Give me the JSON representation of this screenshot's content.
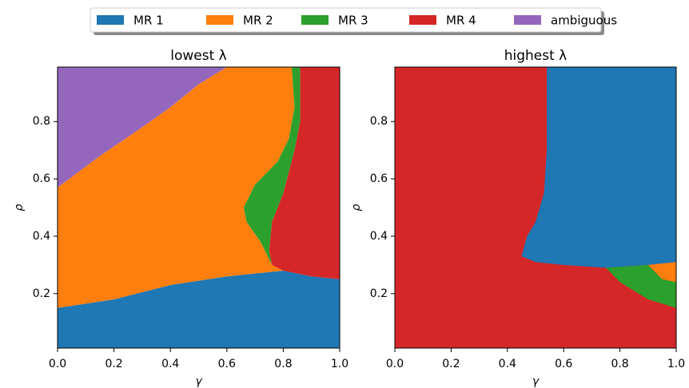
{
  "chart_data": [
    {
      "type": "region",
      "title": "lowest λ",
      "xlabel": "γ",
      "ylabel": "ρ",
      "xlim": [
        0,
        1
      ],
      "ylim": [
        0.01,
        0.99
      ],
      "xticks": [
        {
          "value": 0,
          "label": "0.0"
        },
        0.2,
        0.4,
        0.6,
        0.8,
        {
          "value": 1,
          "label": "1.0"
        }
      ],
      "yticks": [
        0.2,
        0.4,
        0.6,
        0.8
      ],
      "series": [
        {
          "name": "MR 1",
          "color": "#1f77b4",
          "x": [
            0,
            1,
            1,
            0.9,
            0.8,
            0.6,
            0.4,
            0.2,
            0.1,
            0
          ],
          "y": [
            0.01,
            0.01,
            0.25,
            0.26,
            0.28,
            0.26,
            0.23,
            0.18,
            0.165,
            0.15
          ]
        },
        {
          "name": "MR 2",
          "color": "#ff7f0e",
          "x": [
            0,
            0.1,
            0.2,
            0.4,
            0.6,
            0.8,
            0.76,
            0.72,
            0.67,
            0.66,
            0.7,
            0.78,
            0.82,
            0.84,
            0.83,
            0.6,
            0.5,
            0.4,
            0.3,
            0.15,
            0
          ],
          "y": [
            0.15,
            0.165,
            0.18,
            0.23,
            0.26,
            0.28,
            0.3,
            0.38,
            0.45,
            0.5,
            0.58,
            0.66,
            0.74,
            0.85,
            0.99,
            0.99,
            0.93,
            0.85,
            0.78,
            0.68,
            0.57
          ]
        },
        {
          "name": "MR 3",
          "color": "#2ca02c",
          "x": [
            0.83,
            0.86,
            0.86,
            0.84,
            0.8,
            0.76,
            0.75,
            0.76,
            0.72,
            0.67,
            0.66,
            0.7,
            0.78,
            0.82,
            0.84
          ],
          "y": [
            0.99,
            0.99,
            0.8,
            0.7,
            0.55,
            0.45,
            0.35,
            0.3,
            0.38,
            0.45,
            0.5,
            0.58,
            0.66,
            0.74,
            0.85
          ]
        },
        {
          "name": "MR 4",
          "color": "#d62728",
          "x": [
            0.86,
            1,
            1,
            0.9,
            0.8,
            0.76,
            0.75,
            0.76,
            0.8,
            0.84,
            0.86
          ],
          "y": [
            0.99,
            0.99,
            0.25,
            0.26,
            0.28,
            0.3,
            0.35,
            0.45,
            0.55,
            0.7,
            0.8
          ]
        },
        {
          "name": "ambiguous",
          "color": "#9467bd",
          "x": [
            0,
            0.15,
            0.3,
            0.4,
            0.5,
            0.6,
            0
          ],
          "y": [
            0.57,
            0.68,
            0.78,
            0.85,
            0.93,
            0.99,
            0.99
          ]
        }
      ]
    },
    {
      "type": "region",
      "title": "highest λ",
      "xlabel": "γ",
      "ylabel": "ρ",
      "xlim": [
        0,
        1
      ],
      "ylim": [
        0.01,
        0.99
      ],
      "xticks": [
        {
          "value": 0,
          "label": "0.0"
        },
        0.2,
        0.4,
        0.6,
        0.8,
        {
          "value": 1,
          "label": "1.0"
        }
      ],
      "yticks": [
        0.2,
        0.4,
        0.6,
        0.8
      ],
      "series": [
        {
          "name": "MR 4",
          "color": "#d62728",
          "x": [
            0,
            1,
            1,
            0
          ],
          "y": [
            0.01,
            0.01,
            0.99,
            0.99
          ]
        },
        {
          "name": "MR 1",
          "color": "#1f77b4",
          "x": [
            0.54,
            1,
            1,
            0.9,
            0.75,
            0.6,
            0.5,
            0.45,
            0.47,
            0.5,
            0.53,
            0.54
          ],
          "y": [
            0.99,
            0.99,
            0.31,
            0.3,
            0.29,
            0.3,
            0.31,
            0.33,
            0.4,
            0.45,
            0.55,
            0.7
          ]
        },
        {
          "name": "MR 2",
          "color": "#ff7f0e",
          "x": [
            0.9,
            1,
            1,
            0.95,
            0.92
          ],
          "y": [
            0.3,
            0.31,
            0.24,
            0.25,
            0.28
          ]
        },
        {
          "name": "MR 3",
          "color": "#2ca02c",
          "x": [
            0.75,
            0.9,
            0.92,
            0.95,
            1,
            1,
            0.9,
            0.85,
            0.8
          ],
          "y": [
            0.29,
            0.3,
            0.28,
            0.25,
            0.24,
            0.15,
            0.18,
            0.21,
            0.24
          ]
        }
      ]
    }
  ]
}
